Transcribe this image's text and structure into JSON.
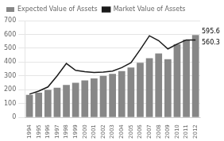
{
  "chart_data": {
    "type": "bar",
    "categories": [
      "1994",
      "1995",
      "1996",
      "1997",
      "1998",
      "1999",
      "2000",
      "2001",
      "2002",
      "2003",
      "2004",
      "2005",
      "2006",
      "2007",
      "2008",
      "2009",
      "2010",
      "2011",
      "2012"
    ],
    "series": [
      {
        "name": "Expected Value of Assets",
        "type": "bar",
        "color": "#878787",
        "values": [
          163,
          178,
          198,
          215,
          235,
          250,
          268,
          282,
          300,
          315,
          335,
          360,
          395,
          428,
          462,
          420,
          530,
          562,
          595.6
        ]
      },
      {
        "name": "Market Value of Assets",
        "type": "line",
        "color": "#1a1a1a",
        "values": [
          168,
          190,
          220,
          300,
          390,
          340,
          330,
          325,
          328,
          335,
          360,
          395,
          490,
          590,
          555,
          495,
          530,
          560,
          560.3
        ]
      }
    ],
    "annotations": [
      "595.6",
      "560.3"
    ],
    "ylim": [
      0,
      700
    ],
    "yticks": [
      0,
      100,
      200,
      300,
      400,
      500,
      600,
      700
    ],
    "grid": true,
    "legend": "upper left"
  }
}
